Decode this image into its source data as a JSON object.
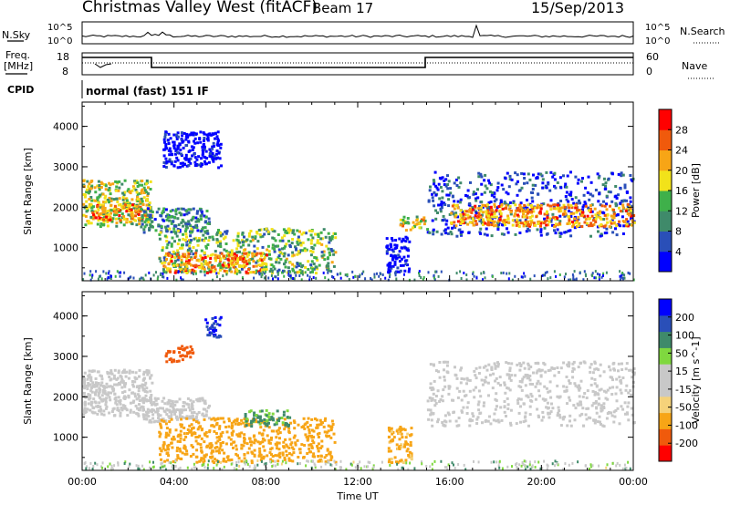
{
  "header": {
    "title": "Christmas Valley West (fitACF)",
    "beam": "Beam 17",
    "date": "15/Sep/2013"
  },
  "strips": {
    "nsky_label": "N.Sky",
    "nsky_ticks": [
      "10^5",
      "10^0"
    ],
    "nsearch_label": "N.Search",
    "nsearch_ticks": [
      "10^5",
      "10^0"
    ],
    "freq_label": "Freq.",
    "freq_unit": "[MHz]",
    "freq_ticks": [
      "18",
      "8"
    ],
    "nave_label": "Nave",
    "nave_ticks": [
      "60",
      "0"
    ],
    "cpid_label": "CPID",
    "cpid_value": "normal (fast) 151 IF"
  },
  "colors": {
    "power_scale": [
      "#0000ff",
      "#2a4fb8",
      "#3f8a6a",
      "#3fb04a",
      "#f2e21a",
      "#f7a516",
      "#f05a0c",
      "#ff0000"
    ],
    "velocity_scale": [
      "#ff0000",
      "#f05a0c",
      "#f7a516",
      "#f5d27a",
      "#c8c8c8",
      "#c8c8c8",
      "#7fd83f",
      "#3f8a6a",
      "#2a4fb8",
      "#0000ff"
    ],
    "velocity_ground": "#c0c0c0"
  },
  "chart_data": [
    {
      "type": "heatmap",
      "panel": "power",
      "ylabel": "Slant Range [km]",
      "ylim": [
        180,
        4600
      ],
      "yticks": [
        "4000",
        "3000",
        "2000",
        "1000"
      ],
      "xlim": [
        0,
        24
      ],
      "colorbar_label": "Power [dB]",
      "colorbar_ticks": [
        "28",
        "24",
        "20",
        "16",
        "12",
        "8",
        "4"
      ],
      "features": [
        {
          "t0": 0,
          "t1": 3,
          "r0": 1550,
          "r1": 2700,
          "level": 22
        },
        {
          "t0": 0.4,
          "t1": 2.9,
          "r0": 1700,
          "r1": 2100,
          "level": 28
        },
        {
          "t0": 2.5,
          "t1": 5.5,
          "r0": 1400,
          "r1": 2000,
          "level": 16
        },
        {
          "t0": 3.3,
          "t1": 11,
          "r0": 400,
          "r1": 1500,
          "level": 20
        },
        {
          "t0": 3.5,
          "t1": 8,
          "r0": 400,
          "r1": 900,
          "level": 28
        },
        {
          "t0": 3.5,
          "t1": 6,
          "r0": 3000,
          "r1": 3900,
          "level": 8
        },
        {
          "t0": 13.2,
          "t1": 14.2,
          "r0": 400,
          "r1": 1300,
          "level": 8
        },
        {
          "t0": 13.8,
          "t1": 15,
          "r0": 1450,
          "r1": 1800,
          "level": 24
        },
        {
          "t0": 15,
          "t1": 24,
          "r0": 1300,
          "r1": 2900,
          "level": 12
        },
        {
          "t0": 16,
          "t1": 24,
          "r0": 1550,
          "r1": 2100,
          "level": 28
        }
      ]
    },
    {
      "type": "heatmap",
      "panel": "velocity",
      "ylabel": "Slant Range [km]",
      "ylim": [
        180,
        4600
      ],
      "yticks": [
        "4000",
        "3000",
        "2000",
        "1000"
      ],
      "xlim": [
        0,
        24
      ],
      "xticks": [
        "00:00",
        "04:00",
        "08:00",
        "12:00",
        "16:00",
        "20:00",
        "00:00"
      ],
      "xlabel": "Time UT",
      "colorbar_label": "Velocity [m s^-1]",
      "colorbar_ticks": [
        "200",
        "100",
        "50",
        "15",
        "-15",
        "-50",
        "-100",
        "-200"
      ],
      "features": [
        {
          "t0": 0,
          "t1": 3,
          "r0": 1550,
          "r1": 2700,
          "v": 0
        },
        {
          "t0": 2.6,
          "t1": 5.5,
          "r0": 1400,
          "r1": 2000,
          "v": 0
        },
        {
          "t0": 3.3,
          "t1": 11,
          "r0": 400,
          "r1": 1500,
          "v": -60
        },
        {
          "t0": 7,
          "t1": 9,
          "r0": 1300,
          "r1": 1700,
          "v": 40
        },
        {
          "t0": 3.6,
          "t1": 4.8,
          "r0": 2900,
          "r1": 3300,
          "v": -100
        },
        {
          "t0": 5.3,
          "t1": 6,
          "r0": 3500,
          "r1": 4000,
          "v": 150
        },
        {
          "t0": 13.3,
          "t1": 14.3,
          "r0": 400,
          "r1": 1300,
          "v": -40
        },
        {
          "t0": 15,
          "t1": 24,
          "r0": 1300,
          "r1": 2900,
          "v": 0
        }
      ]
    }
  ]
}
